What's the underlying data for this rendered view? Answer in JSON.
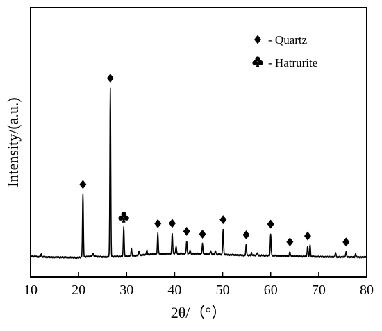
{
  "chart_data": {
    "type": "line",
    "xlabel": "2θ/（°）",
    "ylabel": "Intensity/(a.u.)",
    "xlim": [
      10,
      80
    ],
    "ylim": [
      0,
      100
    ],
    "x_ticks": [
      "10",
      "20",
      "30",
      "40",
      "50",
      "60",
      "70",
      "80"
    ],
    "y_ticks_shown": false,
    "grid": false,
    "legend_position": "top-right",
    "legend": [
      {
        "symbol": "diamond",
        "label": "- Quartz"
      },
      {
        "symbol": "club",
        "label": "- Hatrurite"
      }
    ],
    "colors": {
      "line": "#000000",
      "markers": "#000000",
      "axes": "#000000"
    },
    "baseline": [
      [
        10.0,
        1.0
      ],
      [
        14.0,
        0.5
      ],
      [
        20.0,
        0.3
      ],
      [
        23.0,
        1.2
      ],
      [
        25.0,
        0.6
      ],
      [
        30.0,
        1.0
      ],
      [
        35.0,
        2.2
      ],
      [
        40.0,
        2.5
      ],
      [
        45.0,
        2.5
      ],
      [
        50.0,
        2.0
      ],
      [
        55.0,
        1.5
      ],
      [
        60.0,
        1.5
      ],
      [
        65.0,
        1.0
      ],
      [
        70.0,
        0.8
      ],
      [
        75.0,
        0.6
      ],
      [
        80.0,
        0.5
      ]
    ],
    "peaks": [
      {
        "x": 12.2,
        "height": 1.5,
        "marker": "none"
      },
      {
        "x": 20.9,
        "height": 35.0,
        "marker": "quartz"
      },
      {
        "x": 23.0,
        "height": 1.5,
        "marker": "none"
      },
      {
        "x": 26.6,
        "height": 94.0,
        "marker": "quartz"
      },
      {
        "x": 29.4,
        "height": 16.5,
        "marker": "hatrurite"
      },
      {
        "x": 31.0,
        "height": 4.0,
        "marker": "none"
      },
      {
        "x": 32.6,
        "height": 2.5,
        "marker": "none"
      },
      {
        "x": 34.2,
        "height": 2.5,
        "marker": "none"
      },
      {
        "x": 36.5,
        "height": 11.5,
        "marker": "quartz"
      },
      {
        "x": 39.5,
        "height": 11.5,
        "marker": "quartz"
      },
      {
        "x": 40.3,
        "height": 4.0,
        "marker": "none"
      },
      {
        "x": 42.5,
        "height": 7.0,
        "marker": "quartz"
      },
      {
        "x": 43.2,
        "height": 2.0,
        "marker": "none"
      },
      {
        "x": 45.8,
        "height": 5.5,
        "marker": "quartz"
      },
      {
        "x": 47.5,
        "height": 2.0,
        "marker": "none"
      },
      {
        "x": 48.5,
        "height": 2.0,
        "marker": "none"
      },
      {
        "x": 50.1,
        "height": 14.0,
        "marker": "quartz"
      },
      {
        "x": 54.9,
        "height": 6.0,
        "marker": "quartz"
      },
      {
        "x": 56.0,
        "height": 1.5,
        "marker": "none"
      },
      {
        "x": 57.2,
        "height": 1.5,
        "marker": "none"
      },
      {
        "x": 60.0,
        "height": 12.0,
        "marker": "quartz"
      },
      {
        "x": 64.0,
        "height": 2.5,
        "marker": "quartz"
      },
      {
        "x": 67.7,
        "height": 6.0,
        "marker": "quartz"
      },
      {
        "x": 68.2,
        "height": 6.5,
        "marker": "none"
      },
      {
        "x": 73.5,
        "height": 2.5,
        "marker": "none"
      },
      {
        "x": 75.7,
        "height": 3.0,
        "marker": "quartz"
      },
      {
        "x": 77.7,
        "height": 2.0,
        "marker": "none"
      }
    ]
  }
}
